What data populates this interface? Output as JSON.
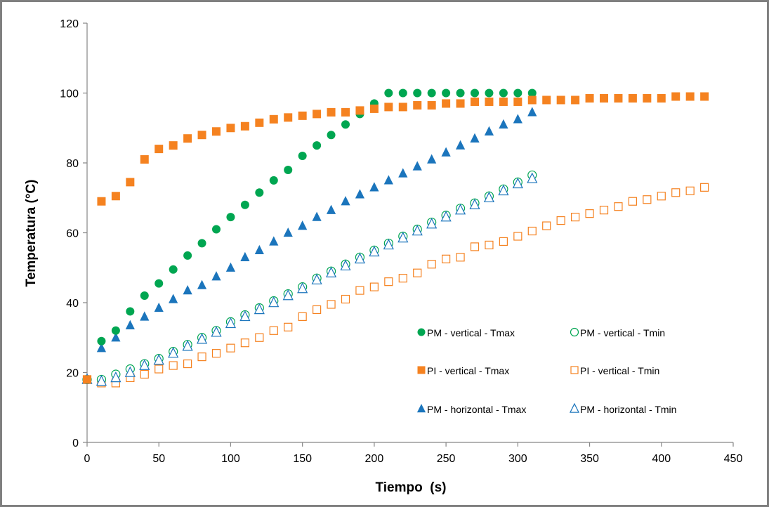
{
  "chart_data": {
    "type": "scatter",
    "xlabel": "Tiempo  (s)",
    "ylabel": "Temperatura (°C)",
    "xlim": [
      0,
      450
    ],
    "ylim": [
      0,
      120
    ],
    "xticks": [
      0,
      50,
      100,
      150,
      200,
      250,
      300,
      350,
      400,
      450
    ],
    "yticks": [
      0,
      20,
      40,
      60,
      80,
      100,
      120
    ],
    "grid": false,
    "legend_position": "bottom-right (inside plot, two columns)",
    "series": [
      {
        "name": "PM - vertical - Tmax",
        "color": "#00a651",
        "marker": "circle",
        "filled": true,
        "x": [
          0,
          10,
          20,
          30,
          40,
          50,
          60,
          70,
          80,
          90,
          100,
          110,
          120,
          130,
          140,
          150,
          160,
          170,
          180,
          190,
          200,
          210,
          220,
          230,
          240,
          250,
          260,
          270,
          280,
          290,
          300,
          310
        ],
        "y": [
          18,
          29,
          32,
          37.5,
          42,
          45.5,
          49.5,
          53.5,
          57,
          61,
          64.5,
          68,
          71.5,
          75,
          78,
          82,
          85,
          88,
          91,
          94,
          97,
          100,
          100,
          100,
          100,
          100,
          100,
          100,
          100,
          100,
          100,
          100
        ]
      },
      {
        "name": "PM - vertical - Tmin",
        "color": "#00a651",
        "marker": "circle",
        "filled": false,
        "x": [
          0,
          10,
          20,
          30,
          40,
          50,
          60,
          70,
          80,
          90,
          100,
          110,
          120,
          130,
          140,
          150,
          160,
          170,
          180,
          190,
          200,
          210,
          220,
          230,
          240,
          250,
          260,
          270,
          280,
          290,
          300,
          310
        ],
        "y": [
          18,
          18,
          19.5,
          21,
          22.5,
          24,
          26,
          28,
          30,
          32,
          34.5,
          36.5,
          38.5,
          40.5,
          42.5,
          44.5,
          47,
          49,
          51,
          53,
          55,
          57,
          59,
          61,
          63,
          65,
          67,
          68.5,
          70.5,
          72.5,
          74.5,
          76.5
        ]
      },
      {
        "name": "PI - vertical - Tmax",
        "color": "#f58220",
        "marker": "square",
        "filled": true,
        "x": [
          0,
          10,
          20,
          30,
          40,
          50,
          60,
          70,
          80,
          90,
          100,
          110,
          120,
          130,
          140,
          150,
          160,
          170,
          180,
          190,
          200,
          210,
          220,
          230,
          240,
          250,
          260,
          270,
          280,
          290,
          300,
          310,
          320,
          330,
          340,
          350,
          360,
          370,
          380,
          390,
          400,
          410,
          420,
          430
        ],
        "y": [
          18,
          69,
          70.5,
          74.5,
          81,
          84,
          85,
          87,
          88,
          89,
          90,
          90.5,
          91.5,
          92.5,
          93,
          93.5,
          94,
          94.5,
          94.5,
          95,
          95.5,
          96,
          96,
          96.5,
          96.5,
          97,
          97,
          97.5,
          97.5,
          97.5,
          97.5,
          98,
          98,
          98,
          98,
          98.5,
          98.5,
          98.5,
          98.5,
          98.5,
          98.5,
          99,
          99,
          99
        ]
      },
      {
        "name": "PI - vertical - Tmin",
        "color": "#f58220",
        "marker": "square",
        "filled": false,
        "x": [
          0,
          10,
          20,
          30,
          40,
          50,
          60,
          70,
          80,
          90,
          100,
          110,
          120,
          130,
          140,
          150,
          160,
          170,
          180,
          190,
          200,
          210,
          220,
          230,
          240,
          250,
          260,
          270,
          280,
          290,
          300,
          310,
          320,
          330,
          340,
          350,
          360,
          370,
          380,
          390,
          400,
          410,
          420,
          430
        ],
        "y": [
          18,
          17,
          17,
          18.5,
          19.5,
          21,
          22,
          22.5,
          24.5,
          25.5,
          27,
          28.5,
          30,
          32,
          33,
          36,
          38,
          39.5,
          41,
          43.5,
          44.5,
          46,
          47,
          48.5,
          51,
          52.5,
          53,
          56,
          56.5,
          57.5,
          59,
          60.5,
          62,
          63.5,
          64.5,
          65.5,
          66.5,
          67.5,
          69,
          69.5,
          70.5,
          71.5,
          72,
          73
        ]
      },
      {
        "name": "PM - horizontal - Tmax",
        "color": "#1b75bc",
        "marker": "triangle",
        "filled": true,
        "x": [
          0,
          10,
          20,
          30,
          40,
          50,
          60,
          70,
          80,
          90,
          100,
          110,
          120,
          130,
          140,
          150,
          160,
          170,
          180,
          190,
          200,
          210,
          220,
          230,
          240,
          250,
          260,
          270,
          280,
          290,
          300,
          310
        ],
        "y": [
          18,
          27,
          30,
          33.5,
          36,
          38.5,
          41,
          43.5,
          45,
          47.5,
          50,
          53,
          55,
          57.5,
          60,
          62,
          64.5,
          66.5,
          69,
          71,
          73,
          75,
          77,
          79,
          81,
          83,
          85,
          87,
          89,
          91,
          92.5,
          94.5
        ]
      },
      {
        "name": "PM - horizontal - Tmin",
        "color": "#1b75bc",
        "marker": "triangle",
        "filled": false,
        "x": [
          0,
          10,
          20,
          30,
          40,
          50,
          60,
          70,
          80,
          90,
          100,
          110,
          120,
          130,
          140,
          150,
          160,
          170,
          180,
          190,
          200,
          210,
          220,
          230,
          240,
          250,
          260,
          270,
          280,
          290,
          300,
          310
        ],
        "y": [
          18,
          17.5,
          18.5,
          20,
          22,
          23.5,
          25.5,
          27.5,
          29.5,
          31.5,
          34,
          36,
          38,
          40,
          42,
          44,
          46.5,
          48.5,
          50.5,
          52.5,
          54.5,
          56.5,
          58.5,
          60.5,
          62.5,
          64.5,
          66.5,
          68,
          70,
          72,
          74,
          75.5
        ]
      }
    ]
  }
}
